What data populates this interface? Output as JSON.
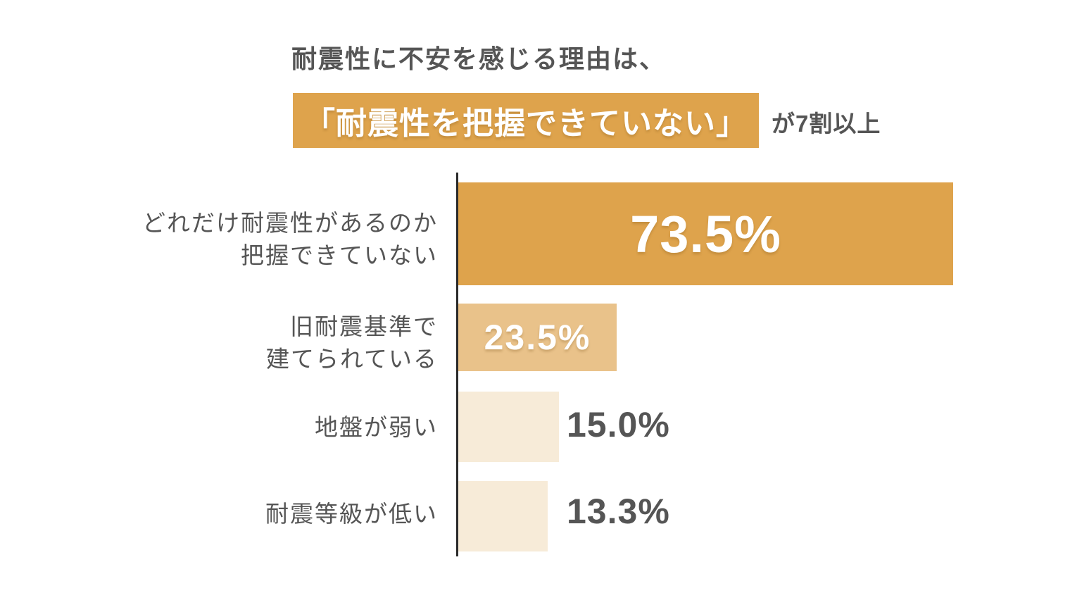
{
  "header": {
    "title": "耐震性に不安を感じる理由は、",
    "highlight": "「耐震性を把握できていない」",
    "suffix": "が7割以上"
  },
  "colors": {
    "accent_strong": "#DEA34C",
    "accent_medium": "#E9C28A",
    "accent_pale": "#F7EBD8",
    "text_gray": "#555555",
    "axis_line": "#2B2B2B",
    "value_on_bar": "#FFFFFF",
    "background": "#FFFFFF"
  },
  "chart_data": {
    "type": "bar",
    "orientation": "horizontal",
    "title": "耐震性に不安を感じる理由は、「耐震性を把握できていない」が7割以上",
    "categories": [
      "どれだけ耐震性があるのか把握できていない",
      "旧耐震基準で建てられている",
      "地盤が弱い",
      "耐震等級が低い"
    ],
    "values": [
      73.5,
      23.5,
      15.0,
      13.3
    ],
    "unit": "%",
    "xlim": [
      0,
      100
    ],
    "grid": false,
    "legend": false,
    "value_axis_visible": false,
    "bars": [
      {
        "label_lines": [
          "どれだけ耐震性があるのか",
          "把握できていない"
        ],
        "value": 73.5,
        "value_label": "73.5%",
        "value_position": "inside",
        "color": "#DEA34C"
      },
      {
        "label_lines": [
          "旧耐震基準で",
          "建てられている"
        ],
        "value": 23.5,
        "value_label": "23.5%",
        "value_position": "inside",
        "color": "#E9C28A"
      },
      {
        "label_lines": [
          "地盤が弱い"
        ],
        "value": 15.0,
        "value_label": "15.0%",
        "value_position": "outside",
        "color": "#F7EBD8"
      },
      {
        "label_lines": [
          "耐震等級が低い"
        ],
        "value": 13.3,
        "value_label": "13.3%",
        "value_position": "outside",
        "color": "#F7EBD8"
      }
    ]
  }
}
